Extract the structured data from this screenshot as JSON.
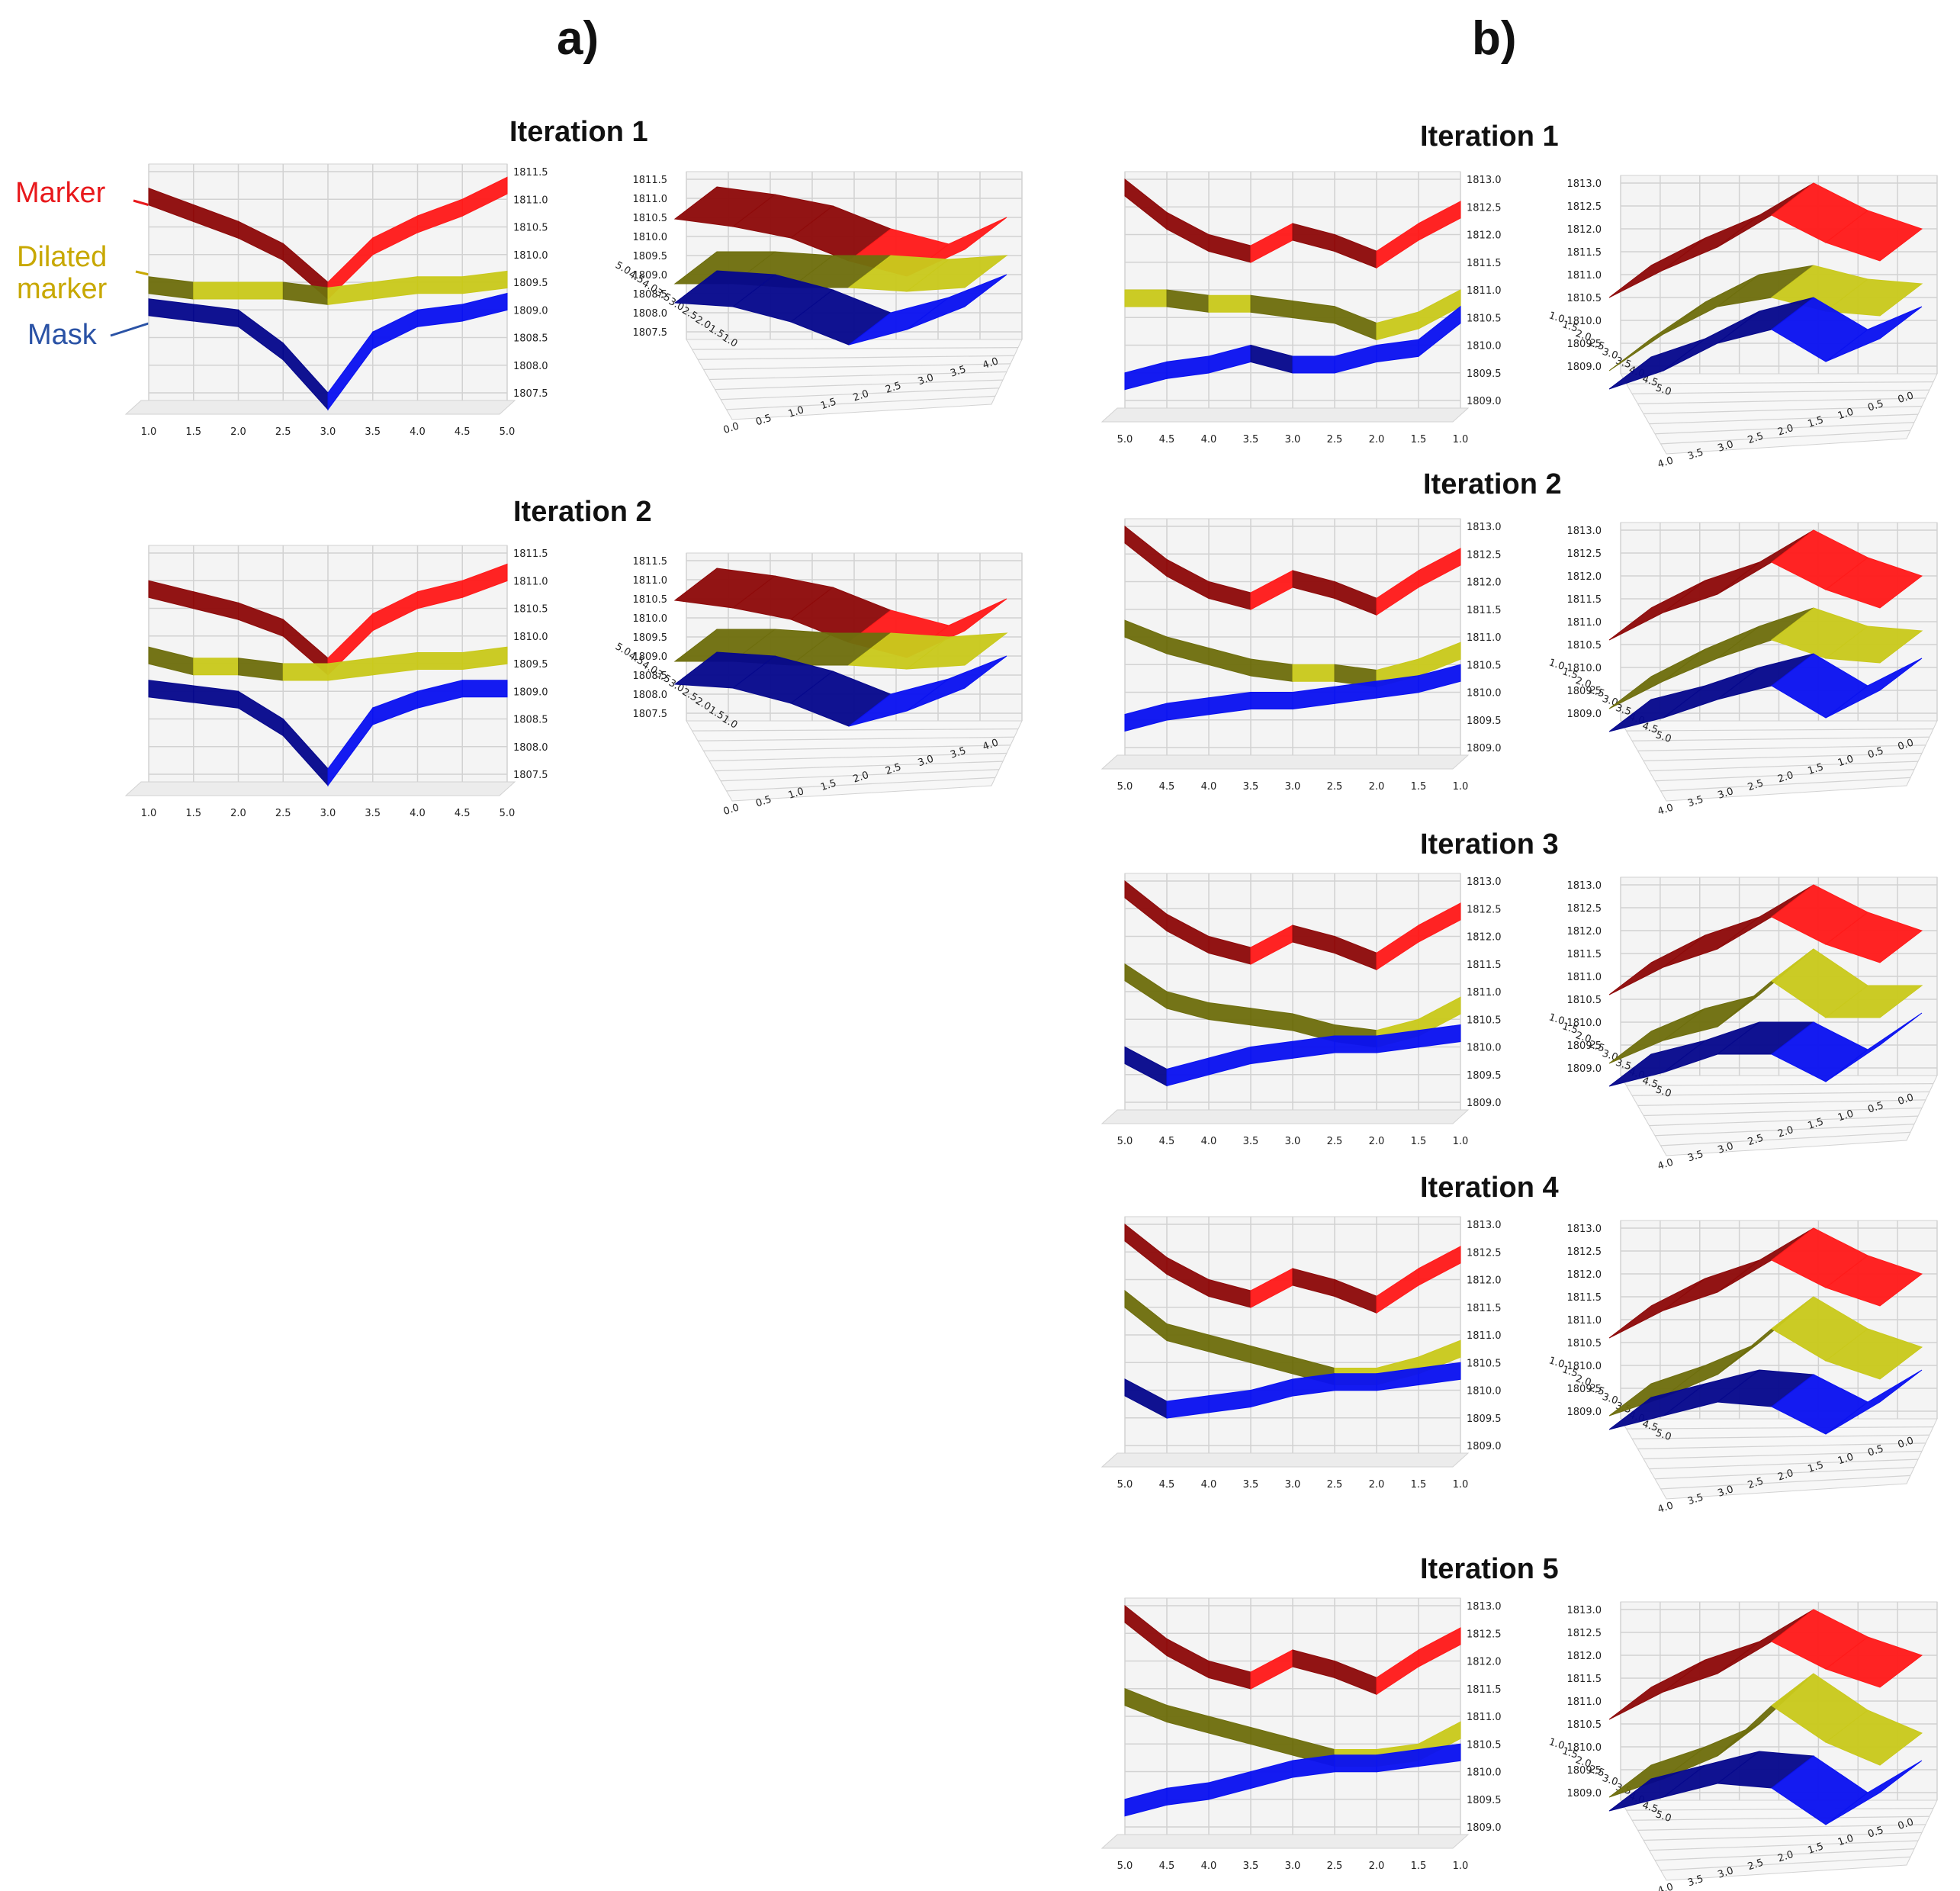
{
  "panels": {
    "a_label": "a)",
    "b_label": "b)"
  },
  "legend": {
    "marker": {
      "label": "Marker",
      "color": "#e8191c"
    },
    "dilated": {
      "label_line1": "Dilated",
      "label_line2": "marker",
      "color": "#c8a800"
    },
    "mask": {
      "label": "Mask",
      "color": "#2a52a5"
    }
  },
  "colors": {
    "red": "#ff1a1a",
    "red_dark": "#8e0a0a",
    "yellow": "#c9c91c",
    "yellow_dark": "#6e6e0e",
    "blue": "#0a12f0",
    "blue_dark": "#06088c",
    "grid": "#d2d2d2",
    "pane": "#f4f4f4"
  },
  "a_iterations": [
    {
      "title": "Iteration 1"
    },
    {
      "title": "Iteration 2"
    }
  ],
  "b_iterations": [
    {
      "title": "Iteration 1"
    },
    {
      "title": "Iteration 2"
    },
    {
      "title": "Iteration 3"
    },
    {
      "title": "Iteration 4"
    },
    {
      "title": "Iteration 5"
    }
  ],
  "chart_data": [
    {
      "panel": "a",
      "iteration": 1,
      "view": "front",
      "type": "surface3d",
      "x_ticks": [
        "1.0",
        "1.5",
        "2.0",
        "2.5",
        "3.0",
        "3.5",
        "4.0",
        "4.5",
        "5.0"
      ],
      "z_ticks": [
        "1811.5",
        "1811.0",
        "1810.5",
        "1810.0",
        "1809.5",
        "1809.0",
        "1808.5",
        "1808.0",
        "1807.5"
      ],
      "zlim": [
        1807.5,
        1811.5
      ],
      "series": [
        {
          "name": "Marker",
          "values": [
            1811.2,
            1810.9,
            1810.6,
            1810.2,
            1809.5,
            1810.3,
            1810.7,
            1811.0,
            1811.4
          ]
        },
        {
          "name": "Dilated marker",
          "values": [
            1809.6,
            1809.5,
            1809.5,
            1809.5,
            1809.4,
            1809.5,
            1809.6,
            1809.6,
            1809.7
          ]
        },
        {
          "name": "Mask",
          "values": [
            1809.2,
            1809.1,
            1809.0,
            1808.4,
            1807.5,
            1808.6,
            1809.0,
            1809.1,
            1809.3
          ]
        }
      ]
    },
    {
      "panel": "a",
      "iteration": 1,
      "view": "oblique",
      "type": "surface3d",
      "x_ticks": [
        "5.0",
        "4.5",
        "4.0",
        "3.5",
        "3.0",
        "2.5",
        "2.0",
        "1.5",
        "1.0"
      ],
      "y_ticks": [
        "0.0",
        "0.5",
        "1.0",
        "1.5",
        "2.0",
        "2.5",
        "3.0",
        "3.5",
        "4.0"
      ],
      "z_ticks": [
        "1811.5",
        "1811.0",
        "1810.5",
        "1810.0",
        "1809.5",
        "1809.0",
        "1808.5",
        "1808.0",
        "1807.5"
      ],
      "zlim": [
        1807.5,
        1811.5
      ],
      "series": [
        {
          "name": "Marker",
          "values": [
            1811.3,
            1811.1,
            1810.8,
            1810.2,
            1809.8,
            1810.5
          ]
        },
        {
          "name": "Dilated marker",
          "values": [
            1809.6,
            1809.6,
            1809.5,
            1809.5,
            1809.4,
            1809.5
          ]
        },
        {
          "name": "Mask",
          "values": [
            1809.1,
            1809.0,
            1808.6,
            1808.0,
            1808.4,
            1809.0
          ]
        }
      ]
    },
    {
      "panel": "a",
      "iteration": 2,
      "view": "front",
      "type": "surface3d",
      "x_ticks": [
        "1.0",
        "1.5",
        "2.0",
        "2.5",
        "3.0",
        "3.5",
        "4.0",
        "4.5",
        "5.0"
      ],
      "z_ticks": [
        "1811.5",
        "1811.0",
        "1810.5",
        "1810.0",
        "1809.5",
        "1809.0",
        "1808.5",
        "1808.0",
        "1807.5"
      ],
      "zlim": [
        1807.5,
        1811.5
      ],
      "series": [
        {
          "name": "Marker",
          "values": [
            1811.0,
            1810.8,
            1810.6,
            1810.3,
            1809.6,
            1810.4,
            1810.8,
            1811.0,
            1811.3
          ]
        },
        {
          "name": "Dilated marker",
          "values": [
            1809.8,
            1809.6,
            1809.6,
            1809.5,
            1809.5,
            1809.6,
            1809.7,
            1809.7,
            1809.8
          ]
        },
        {
          "name": "Mask",
          "values": [
            1809.2,
            1809.1,
            1809.0,
            1808.5,
            1807.6,
            1808.7,
            1809.0,
            1809.2,
            1809.2
          ]
        }
      ]
    },
    {
      "panel": "a",
      "iteration": 2,
      "view": "oblique",
      "type": "surface3d",
      "x_ticks": [
        "5.0",
        "4.5",
        "4.0",
        "3.5",
        "3.0",
        "2.5",
        "2.0",
        "1.5",
        "1.0"
      ],
      "y_ticks": [
        "0.0",
        "0.5",
        "1.0",
        "1.5",
        "2.0",
        "2.5",
        "3.0",
        "3.5",
        "4.0"
      ],
      "z_ticks": [
        "1811.5",
        "1811.0",
        "1810.5",
        "1810.0",
        "1809.5",
        "1809.0",
        "1808.5",
        "1808.0",
        "1807.5"
      ],
      "zlim": [
        1807.5,
        1811.5
      ],
      "series": [
        {
          "name": "Marker",
          "values": [
            1811.3,
            1811.1,
            1810.8,
            1810.2,
            1809.8,
            1810.5
          ]
        },
        {
          "name": "Dilated marker",
          "values": [
            1809.7,
            1809.7,
            1809.6,
            1809.6,
            1809.5,
            1809.6
          ]
        },
        {
          "name": "Mask",
          "values": [
            1809.1,
            1809.0,
            1808.6,
            1808.0,
            1808.4,
            1809.0
          ]
        }
      ]
    },
    {
      "panel": "b",
      "iteration": 1,
      "view": "front",
      "type": "surface3d",
      "x_ticks": [
        "5.0",
        "4.5",
        "4.0",
        "3.5",
        "3.0",
        "2.5",
        "2.0",
        "1.5",
        "1.0"
      ],
      "z_ticks": [
        "1813.0",
        "1812.5",
        "1812.0",
        "1811.5",
        "1811.0",
        "1810.5",
        "1810.0",
        "1809.5",
        "1809.0"
      ],
      "zlim": [
        1809.0,
        1813.0
      ],
      "series": [
        {
          "name": "Marker",
          "values": [
            1813.0,
            1812.4,
            1812.0,
            1811.8,
            1812.2,
            1812.0,
            1811.7,
            1812.2,
            1812.6
          ]
        },
        {
          "name": "Dilated marker",
          "values": [
            1811.0,
            1811.0,
            1810.9,
            1810.9,
            1810.8,
            1810.7,
            1810.4,
            1810.6,
            1811.0
          ]
        },
        {
          "name": "Mask",
          "values": [
            1809.5,
            1809.7,
            1809.8,
            1810.0,
            1809.8,
            1809.8,
            1810.0,
            1810.1,
            1810.7
          ]
        }
      ]
    },
    {
      "panel": "b",
      "iteration": 1,
      "view": "oblique",
      "type": "surface3d",
      "x_ticks": [
        "1.0",
        "1.5",
        "2.0",
        "2.5",
        "3.0",
        "3.5",
        "4.0",
        "4.5",
        "5.0"
      ],
      "y_ticks": [
        "4.0",
        "3.5",
        "3.0",
        "2.5",
        "2.0",
        "1.5",
        "1.0",
        "0.5",
        "0.0"
      ],
      "z_ticks": [
        "1813.0",
        "1812.5",
        "1812.0",
        "1811.5",
        "1811.0",
        "1810.5",
        "1810.0",
        "1809.5",
        "1809.0"
      ],
      "zlim": [
        1809.0,
        1813.0
      ],
      "series": [
        {
          "name": "Marker",
          "values": [
            1811.2,
            1811.8,
            1812.3,
            1813.0,
            1812.4,
            1812.0
          ]
        },
        {
          "name": "Dilated marker",
          "values": [
            1809.6,
            1810.4,
            1811.0,
            1811.2,
            1810.9,
            1810.8
          ]
        },
        {
          "name": "Mask",
          "values": [
            1809.2,
            1809.6,
            1810.2,
            1810.5,
            1809.8,
            1810.3
          ]
        }
      ]
    },
    {
      "panel": "b",
      "iteration": 2,
      "view": "front",
      "type": "surface3d",
      "x_ticks": [
        "5.0",
        "4.5",
        "4.0",
        "3.5",
        "3.0",
        "2.5",
        "2.0",
        "1.5",
        "1.0"
      ],
      "z_ticks": [
        "1813.0",
        "1812.5",
        "1812.0",
        "1811.5",
        "1811.0",
        "1810.5",
        "1810.0",
        "1809.5",
        "1809.0"
      ],
      "zlim": [
        1809.0,
        1813.0
      ],
      "series": [
        {
          "name": "Marker",
          "values": [
            1813.0,
            1812.4,
            1812.0,
            1811.8,
            1812.2,
            1812.0,
            1811.7,
            1812.2,
            1812.6
          ]
        },
        {
          "name": "Dilated marker",
          "values": [
            1811.3,
            1811.0,
            1810.8,
            1810.6,
            1810.5,
            1810.5,
            1810.4,
            1810.6,
            1810.9
          ]
        },
        {
          "name": "Mask",
          "values": [
            1809.6,
            1809.8,
            1809.9,
            1810.0,
            1810.0,
            1810.1,
            1810.2,
            1810.3,
            1810.5
          ]
        }
      ]
    },
    {
      "panel": "b",
      "iteration": 2,
      "view": "oblique",
      "type": "surface3d",
      "x_ticks": [
        "1.0",
        "1.5",
        "2.0",
        "2.5",
        "3.0",
        "3.5",
        "4.0",
        "4.5",
        "5.0"
      ],
      "y_ticks": [
        "4.0",
        "3.5",
        "3.0",
        "2.5",
        "2.0",
        "1.5",
        "1.0",
        "0.5",
        "0.0"
      ],
      "z_ticks": [
        "1813.0",
        "1812.5",
        "1812.0",
        "1811.5",
        "1811.0",
        "1810.5",
        "1810.0",
        "1809.5",
        "1809.0"
      ],
      "zlim": [
        1809.0,
        1813.0
      ],
      "series": [
        {
          "name": "Marker",
          "values": [
            1811.3,
            1811.9,
            1812.3,
            1813.0,
            1812.4,
            1812.0
          ]
        },
        {
          "name": "Dilated marker",
          "values": [
            1809.8,
            1810.4,
            1810.9,
            1811.3,
            1810.9,
            1810.8
          ]
        },
        {
          "name": "Mask",
          "values": [
            1809.3,
            1809.6,
            1810.0,
            1810.3,
            1809.6,
            1810.2
          ]
        }
      ]
    },
    {
      "panel": "b",
      "iteration": 3,
      "view": "front",
      "type": "surface3d",
      "x_ticks": [
        "5.0",
        "4.5",
        "4.0",
        "3.5",
        "3.0",
        "2.5",
        "2.0",
        "1.5",
        "1.0"
      ],
      "z_ticks": [
        "1813.0",
        "1812.5",
        "1812.0",
        "1811.5",
        "1811.0",
        "1810.5",
        "1810.0",
        "1809.5",
        "1809.0"
      ],
      "zlim": [
        1809.0,
        1813.0
      ],
      "series": [
        {
          "name": "Marker",
          "values": [
            1813.0,
            1812.4,
            1812.0,
            1811.8,
            1812.2,
            1812.0,
            1811.7,
            1812.2,
            1812.6
          ]
        },
        {
          "name": "Dilated marker",
          "values": [
            1811.5,
            1811.0,
            1810.8,
            1810.7,
            1810.6,
            1810.4,
            1810.3,
            1810.5,
            1810.9
          ]
        },
        {
          "name": "Mask",
          "values": [
            1810.0,
            1809.6,
            1809.8,
            1810.0,
            1810.1,
            1810.2,
            1810.2,
            1810.3,
            1810.4
          ]
        }
      ]
    },
    {
      "panel": "b",
      "iteration": 3,
      "view": "oblique",
      "type": "surface3d",
      "x_ticks": [
        "1.0",
        "1.5",
        "2.0",
        "2.5",
        "3.0",
        "3.5",
        "4.0",
        "4.5",
        "5.0"
      ],
      "y_ticks": [
        "4.0",
        "3.5",
        "3.0",
        "2.5",
        "2.0",
        "1.5",
        "1.0",
        "0.5",
        "0.0"
      ],
      "z_ticks": [
        "1813.0",
        "1812.5",
        "1812.0",
        "1811.5",
        "1811.0",
        "1810.5",
        "1810.0",
        "1809.5",
        "1809.0"
      ],
      "zlim": [
        1809.0,
        1813.0
      ],
      "series": [
        {
          "name": "Marker",
          "values": [
            1811.3,
            1811.9,
            1812.3,
            1813.0,
            1812.4,
            1812.0
          ]
        },
        {
          "name": "Dilated marker",
          "values": [
            1809.8,
            1810.3,
            1810.6,
            1811.6,
            1810.8,
            1810.8
          ]
        },
        {
          "name": "Mask",
          "values": [
            1809.3,
            1809.6,
            1810.0,
            1810.0,
            1809.4,
            1810.2
          ]
        }
      ]
    },
    {
      "panel": "b",
      "iteration": 4,
      "view": "front",
      "type": "surface3d",
      "x_ticks": [
        "5.0",
        "4.5",
        "4.0",
        "3.5",
        "3.0",
        "2.5",
        "2.0",
        "1.5",
        "1.0"
      ],
      "z_ticks": [
        "1813.0",
        "1812.5",
        "1812.0",
        "1811.5",
        "1811.0",
        "1810.5",
        "1810.0",
        "1809.5",
        "1809.0"
      ],
      "zlim": [
        1809.0,
        1813.0
      ],
      "series": [
        {
          "name": "Marker",
          "values": [
            1813.0,
            1812.4,
            1812.0,
            1811.8,
            1812.2,
            1812.0,
            1811.7,
            1812.2,
            1812.6
          ]
        },
        {
          "name": "Dilated marker",
          "values": [
            1811.8,
            1811.2,
            1811.0,
            1810.8,
            1810.6,
            1810.4,
            1810.4,
            1810.6,
            1810.9
          ]
        },
        {
          "name": "Mask",
          "values": [
            1810.2,
            1809.8,
            1809.9,
            1810.0,
            1810.2,
            1810.3,
            1810.3,
            1810.4,
            1810.5
          ]
        }
      ]
    },
    {
      "panel": "b",
      "iteration": 4,
      "view": "oblique",
      "type": "surface3d",
      "x_ticks": [
        "1.0",
        "1.5",
        "2.0",
        "2.5",
        "3.0",
        "3.5",
        "4.0",
        "4.5",
        "5.0"
      ],
      "y_ticks": [
        "4.0",
        "3.5",
        "3.0",
        "2.5",
        "2.0",
        "1.5",
        "1.0",
        "0.5",
        "0.0"
      ],
      "z_ticks": [
        "1813.0",
        "1812.5",
        "1812.0",
        "1811.5",
        "1811.0",
        "1810.5",
        "1810.0",
        "1809.5",
        "1809.0"
      ],
      "zlim": [
        1809.0,
        1813.0
      ],
      "series": [
        {
          "name": "Marker",
          "values": [
            1811.3,
            1811.9,
            1812.3,
            1813.0,
            1812.4,
            1812.0
          ]
        },
        {
          "name": "Dilated marker",
          "values": [
            1809.6,
            1810.0,
            1810.5,
            1811.5,
            1810.8,
            1810.4
          ]
        },
        {
          "name": "Mask",
          "values": [
            1809.3,
            1809.6,
            1809.9,
            1809.8,
            1809.2,
            1809.9
          ]
        }
      ]
    },
    {
      "panel": "b",
      "iteration": 5,
      "view": "front",
      "type": "surface3d",
      "x_ticks": [
        "5.0",
        "4.5",
        "4.0",
        "3.5",
        "3.0",
        "2.5",
        "2.0",
        "1.5",
        "1.0"
      ],
      "z_ticks": [
        "1813.0",
        "1812.5",
        "1812.0",
        "1811.5",
        "1811.0",
        "1810.5",
        "1810.0",
        "1809.5",
        "1809.0"
      ],
      "zlim": [
        1809.0,
        1813.0
      ],
      "series": [
        {
          "name": "Marker",
          "values": [
            1813.0,
            1812.4,
            1812.0,
            1811.8,
            1812.2,
            1812.0,
            1811.7,
            1812.2,
            1812.6
          ]
        },
        {
          "name": "Dilated marker",
          "values": [
            1811.5,
            1811.2,
            1811.0,
            1810.8,
            1810.6,
            1810.4,
            1810.4,
            1810.5,
            1810.9
          ]
        },
        {
          "name": "Mask",
          "values": [
            1809.5,
            1809.7,
            1809.8,
            1810.0,
            1810.2,
            1810.3,
            1810.3,
            1810.4,
            1810.5
          ]
        }
      ]
    },
    {
      "panel": "b",
      "iteration": 5,
      "view": "oblique",
      "type": "surface3d",
      "x_ticks": [
        "1.0",
        "1.5",
        "2.0",
        "2.5",
        "3.0",
        "3.5",
        "4.0",
        "4.5",
        "5.0"
      ],
      "y_ticks": [
        "4.0",
        "3.5",
        "3.0",
        "2.5",
        "2.0",
        "1.5",
        "1.0",
        "0.5",
        "0.0"
      ],
      "z_ticks": [
        "1813.0",
        "1812.5",
        "1812.0",
        "1811.5",
        "1811.0",
        "1810.5",
        "1810.0",
        "1809.5",
        "1809.0"
      ],
      "zlim": [
        1809.0,
        1813.0
      ],
      "series": [
        {
          "name": "Marker",
          "values": [
            1811.3,
            1811.9,
            1812.3,
            1813.0,
            1812.4,
            1812.0
          ]
        },
        {
          "name": "Dilated marker",
          "values": [
            1809.6,
            1810.0,
            1810.5,
            1811.6,
            1810.8,
            1810.3
          ]
        },
        {
          "name": "Mask",
          "values": [
            1809.3,
            1809.6,
            1809.9,
            1809.8,
            1809.0,
            1809.7
          ]
        }
      ]
    }
  ]
}
